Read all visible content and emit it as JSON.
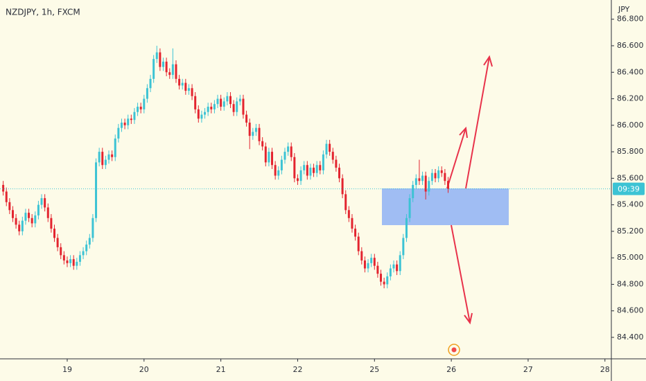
{
  "chart_data": {
    "type": "candlestick",
    "title": "NZDJPY, 1h, FXCM",
    "y_axis_label": "JPY",
    "countdown": "09:39",
    "last_price": 85.52,
    "up_color": "#3cc3d4",
    "down_color": "#e3242f",
    "xlim": [
      -1,
      190
    ],
    "xticks": [
      {
        "value": 20,
        "label": "19"
      },
      {
        "value": 44,
        "label": "20"
      },
      {
        "value": 68,
        "label": "21"
      },
      {
        "value": 92,
        "label": "22"
      },
      {
        "value": 116,
        "label": "25"
      },
      {
        "value": 140,
        "label": "26"
      },
      {
        "value": 164,
        "label": "27"
      },
      {
        "value": 188,
        "label": "28"
      }
    ],
    "ylim": [
      84.238,
      86.945
    ],
    "yticks": [
      {
        "value": 84.4,
        "label": "84.400"
      },
      {
        "value": 84.6,
        "label": "84.600"
      },
      {
        "value": 84.8,
        "label": "84.800"
      },
      {
        "value": 85.0,
        "label": "85.000"
      },
      {
        "value": 85.2,
        "label": "85.200"
      },
      {
        "value": 85.4,
        "label": "85.400"
      },
      {
        "value": 85.6,
        "label": "85.600"
      },
      {
        "value": 85.8,
        "label": "85.800"
      },
      {
        "value": 86.0,
        "label": "86.000"
      },
      {
        "value": 86.2,
        "label": "86.200"
      },
      {
        "value": 86.4,
        "label": "86.400"
      },
      {
        "value": 86.6,
        "label": "86.600"
      },
      {
        "value": 86.8,
        "label": "86.800"
      }
    ],
    "open": [
      85.55,
      85.5,
      85.42,
      85.36,
      85.3,
      85.25,
      85.2,
      85.28,
      85.34,
      85.3,
      85.26,
      85.32,
      85.4,
      85.45,
      85.38,
      85.3,
      85.22,
      85.15,
      85.08,
      85.02,
      84.98,
      84.96,
      84.99,
      84.94,
      84.97,
      85.02,
      85.05,
      85.1,
      85.15,
      85.3,
      85.72,
      85.8,
      85.7,
      85.74,
      85.78,
      85.76,
      85.9,
      85.98,
      86.02,
      86.0,
      86.05,
      86.04,
      86.1,
      86.14,
      86.12,
      86.2,
      86.28,
      86.35,
      86.5,
      86.55,
      86.44,
      86.48,
      86.4,
      86.38,
      86.46,
      86.35,
      86.3,
      86.32,
      86.26,
      86.28,
      86.22,
      86.12,
      86.05,
      86.08,
      86.1,
      86.14,
      86.12,
      86.16,
      86.2,
      86.14,
      86.18,
      86.22,
      86.16,
      86.1,
      86.18,
      86.2,
      86.08,
      86.02,
      85.92,
      85.95,
      85.98,
      85.88,
      85.84,
      85.72,
      85.8,
      85.7,
      85.62,
      85.66,
      85.74,
      85.8,
      85.84,
      85.76,
      85.6,
      85.58,
      85.66,
      85.7,
      85.62,
      85.68,
      85.64,
      85.7,
      85.66,
      85.78,
      85.86,
      85.8,
      85.74,
      85.68,
      85.6,
      85.48,
      85.36,
      85.3,
      85.22,
      85.16,
      85.05,
      84.98,
      84.92,
      84.96,
      85.0,
      84.94,
      84.88,
      84.82,
      84.8,
      84.86,
      84.92,
      84.95,
      84.9,
      85.02,
      85.15,
      85.3,
      85.45,
      85.55,
      85.6,
      85.58,
      85.62,
      85.5,
      85.58,
      85.64,
      85.6,
      85.66,
      85.64,
      85.58
    ],
    "high": [
      85.58,
      85.53,
      85.45,
      85.39,
      85.33,
      85.28,
      85.31,
      85.37,
      85.37,
      85.33,
      85.35,
      85.43,
      85.48,
      85.48,
      85.41,
      85.33,
      85.25,
      85.18,
      85.11,
      85.05,
      85.01,
      85.02,
      85.02,
      85.0,
      85.05,
      85.08,
      85.13,
      85.18,
      85.33,
      85.75,
      85.83,
      85.83,
      85.77,
      85.81,
      85.81,
      85.93,
      86.01,
      86.05,
      86.05,
      86.08,
      86.08,
      86.13,
      86.17,
      86.17,
      86.23,
      86.31,
      86.38,
      86.53,
      86.6,
      86.58,
      86.51,
      86.51,
      86.43,
      86.58,
      86.49,
      86.38,
      86.35,
      86.35,
      86.31,
      86.31,
      86.25,
      86.15,
      86.11,
      86.13,
      86.17,
      86.17,
      86.19,
      86.23,
      86.23,
      86.21,
      86.25,
      86.25,
      86.19,
      86.21,
      86.23,
      86.23,
      86.11,
      86.05,
      85.98,
      86.01,
      86.01,
      85.91,
      85.87,
      85.83,
      85.83,
      85.73,
      85.69,
      85.77,
      85.83,
      85.87,
      85.87,
      85.79,
      85.63,
      85.69,
      85.73,
      85.73,
      85.71,
      85.71,
      85.73,
      85.73,
      85.81,
      85.89,
      85.89,
      85.83,
      85.77,
      85.71,
      85.63,
      85.51,
      85.39,
      85.33,
      85.25,
      85.19,
      85.08,
      85.01,
      84.99,
      85.03,
      85.03,
      84.97,
      84.91,
      84.85,
      84.89,
      84.95,
      84.98,
      84.98,
      85.05,
      85.18,
      85.33,
      85.48,
      85.58,
      85.63,
      85.74,
      85.65,
      85.65,
      85.61,
      85.67,
      85.67,
      85.69,
      85.69,
      85.67,
      85.61
    ],
    "low": [
      85.47,
      85.39,
      85.33,
      85.27,
      85.22,
      85.17,
      85.17,
      85.25,
      85.27,
      85.23,
      85.23,
      85.29,
      85.37,
      85.35,
      85.27,
      85.19,
      85.12,
      85.05,
      84.99,
      84.95,
      84.93,
      84.93,
      84.91,
      84.91,
      84.94,
      84.99,
      85.02,
      85.07,
      85.12,
      85.27,
      85.69,
      85.67,
      85.67,
      85.71,
      85.73,
      85.73,
      85.87,
      85.95,
      85.97,
      85.97,
      86.01,
      86.01,
      86.07,
      86.09,
      86.09,
      86.17,
      86.25,
      86.32,
      86.47,
      86.41,
      86.41,
      86.37,
      86.35,
      86.35,
      86.32,
      86.27,
      86.27,
      86.23,
      86.23,
      86.19,
      86.09,
      86.02,
      86.02,
      86.05,
      86.07,
      86.09,
      86.09,
      86.13,
      86.11,
      86.11,
      86.15,
      86.13,
      86.07,
      86.07,
      86.15,
      86.05,
      85.99,
      85.82,
      85.89,
      85.92,
      85.85,
      85.81,
      85.69,
      85.69,
      85.67,
      85.59,
      85.59,
      85.63,
      85.71,
      85.77,
      85.73,
      85.57,
      85.55,
      85.55,
      85.63,
      85.59,
      85.59,
      85.61,
      85.61,
      85.63,
      85.63,
      85.75,
      85.77,
      85.71,
      85.65,
      85.57,
      85.45,
      85.33,
      85.27,
      85.19,
      85.13,
      85.02,
      84.95,
      84.89,
      84.89,
      84.93,
      84.91,
      84.85,
      84.79,
      84.77,
      84.77,
      84.83,
      84.89,
      84.87,
      84.87,
      84.99,
      85.12,
      85.27,
      85.42,
      85.52,
      85.55,
      85.55,
      85.44,
      85.47,
      85.55,
      85.57,
      85.57,
      85.61,
      85.55,
      85.49
    ],
    "close": [
      85.5,
      85.42,
      85.36,
      85.3,
      85.25,
      85.2,
      85.28,
      85.34,
      85.3,
      85.26,
      85.32,
      85.4,
      85.45,
      85.38,
      85.3,
      85.22,
      85.15,
      85.08,
      85.02,
      84.98,
      84.96,
      84.99,
      84.94,
      84.97,
      85.02,
      85.05,
      85.1,
      85.15,
      85.3,
      85.72,
      85.8,
      85.7,
      85.74,
      85.78,
      85.76,
      85.9,
      85.98,
      86.02,
      86.0,
      86.05,
      86.04,
      86.1,
      86.14,
      86.12,
      86.2,
      86.28,
      86.35,
      86.5,
      86.55,
      86.44,
      86.48,
      86.4,
      86.38,
      86.46,
      86.35,
      86.3,
      86.32,
      86.26,
      86.28,
      86.22,
      86.12,
      86.05,
      86.08,
      86.1,
      86.14,
      86.12,
      86.16,
      86.2,
      86.14,
      86.18,
      86.22,
      86.16,
      86.1,
      86.18,
      86.2,
      86.08,
      86.02,
      85.92,
      85.95,
      85.98,
      85.88,
      85.84,
      85.72,
      85.8,
      85.7,
      85.62,
      85.66,
      85.74,
      85.8,
      85.84,
      85.76,
      85.6,
      85.58,
      85.66,
      85.7,
      85.62,
      85.68,
      85.64,
      85.7,
      85.66,
      85.78,
      85.86,
      85.8,
      85.74,
      85.68,
      85.6,
      85.48,
      85.36,
      85.3,
      85.22,
      85.16,
      85.05,
      84.98,
      84.92,
      84.96,
      85.0,
      84.94,
      84.88,
      84.82,
      84.8,
      84.86,
      84.92,
      84.95,
      84.9,
      85.02,
      85.15,
      85.3,
      85.45,
      85.55,
      85.6,
      85.58,
      85.62,
      85.5,
      85.58,
      85.64,
      85.6,
      85.66,
      85.64,
      85.58,
      85.52
    ]
  }
}
